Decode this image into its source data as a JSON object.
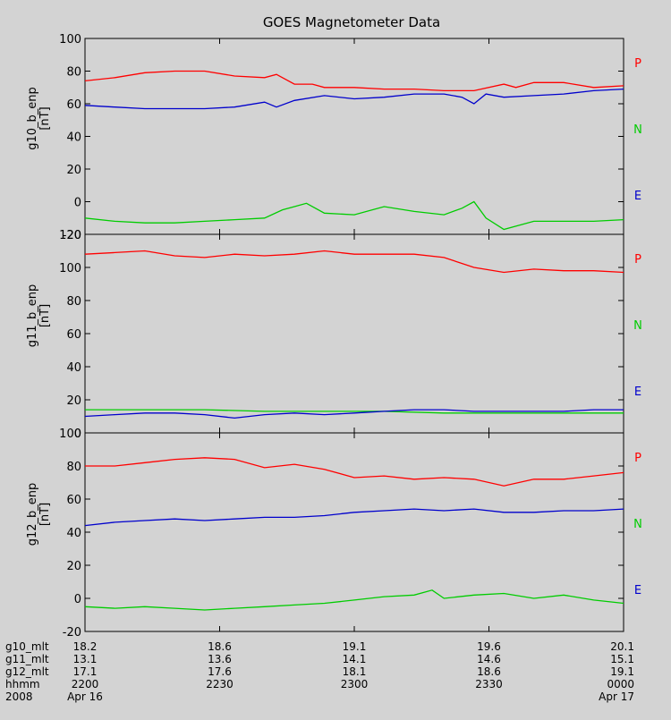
{
  "title": "GOES Magnetometer Data",
  "chart_data": [
    {
      "type": "line",
      "ylabel": "g10_b_enp",
      "yunit": "[nT]",
      "ylim": [
        -20,
        100
      ],
      "yticks": [
        "100",
        "80",
        "60",
        "40",
        "20",
        "0",
        "-20"
      ],
      "series": [
        {
          "name": "P",
          "color": "#ff0000",
          "x": [
            0,
            5,
            10,
            15,
            20,
            25,
            30,
            32,
            35,
            38,
            40,
            45,
            50,
            55,
            60,
            65,
            70,
            72,
            75,
            80,
            85,
            90
          ],
          "y": [
            74,
            76,
            79,
            80,
            80,
            77,
            76,
            78,
            72,
            72,
            70,
            70,
            69,
            69,
            68,
            68,
            72,
            70,
            73,
            73,
            70,
            71
          ]
        },
        {
          "name": "N",
          "color": "#00cc00",
          "x": [
            0,
            5,
            10,
            15,
            20,
            25,
            30,
            33,
            35,
            37,
            40,
            45,
            50,
            55,
            60,
            63,
            65,
            67,
            70,
            75,
            80,
            85,
            90
          ],
          "y": [
            -10,
            -12,
            -13,
            -13,
            -12,
            -11,
            -10,
            -5,
            -3,
            -1,
            -7,
            -8,
            -3,
            -6,
            -8,
            -4,
            0,
            -10,
            -17,
            -12,
            -12,
            -12,
            -11
          ]
        },
        {
          "name": "E",
          "color": "#0000cc",
          "x": [
            0,
            5,
            10,
            15,
            20,
            25,
            30,
            32,
            35,
            40,
            45,
            50,
            55,
            60,
            63,
            65,
            67,
            70,
            75,
            80,
            85,
            90
          ],
          "y": [
            59,
            58,
            57,
            57,
            57,
            58,
            61,
            58,
            62,
            65,
            63,
            64,
            66,
            66,
            64,
            60,
            66,
            64,
            65,
            66,
            68,
            69
          ]
        }
      ]
    },
    {
      "type": "line",
      "ylabel": "g11_b_enp",
      "yunit": "[nT]",
      "ylim": [
        0,
        120
      ],
      "yticks": [
        "120",
        "100",
        "80",
        "60",
        "40",
        "20",
        "0"
      ],
      "series": [
        {
          "name": "P",
          "color": "#ff0000",
          "x": [
            0,
            5,
            10,
            15,
            20,
            25,
            30,
            35,
            40,
            45,
            50,
            55,
            60,
            65,
            70,
            75,
            80,
            85,
            90
          ],
          "y": [
            108,
            109,
            110,
            107,
            106,
            108,
            107,
            108,
            110,
            108,
            108,
            108,
            106,
            100,
            97,
            99,
            98,
            98,
            97
          ]
        },
        {
          "name": "N",
          "color": "#00cc00",
          "x": [
            0,
            10,
            20,
            30,
            40,
            50,
            60,
            70,
            80,
            90
          ],
          "y": [
            14,
            14,
            14,
            13,
            13,
            13,
            12,
            12,
            12,
            12
          ]
        },
        {
          "name": "E",
          "color": "#0000cc",
          "x": [
            0,
            5,
            10,
            15,
            20,
            25,
            30,
            35,
            40,
            45,
            50,
            55,
            60,
            65,
            70,
            75,
            80,
            85,
            90
          ],
          "y": [
            10,
            11,
            12,
            12,
            11,
            9,
            11,
            12,
            11,
            12,
            13,
            14,
            14,
            13,
            13,
            13,
            13,
            14,
            14
          ]
        }
      ]
    },
    {
      "type": "line",
      "ylabel": "g12_b_enp",
      "yunit": "[nT]",
      "ylim": [
        -20,
        100
      ],
      "yticks": [
        "100",
        "80",
        "60",
        "40",
        "20",
        "0",
        "-20"
      ],
      "series": [
        {
          "name": "P",
          "color": "#ff0000",
          "x": [
            0,
            5,
            10,
            15,
            20,
            25,
            30,
            35,
            40,
            45,
            50,
            55,
            60,
            65,
            70,
            75,
            80,
            85,
            90
          ],
          "y": [
            80,
            80,
            82,
            84,
            85,
            84,
            79,
            81,
            78,
            73,
            74,
            72,
            73,
            72,
            68,
            72,
            72,
            74,
            76
          ]
        },
        {
          "name": "N",
          "color": "#00cc00",
          "x": [
            0,
            5,
            10,
            15,
            20,
            25,
            30,
            35,
            40,
            45,
            50,
            55,
            58,
            60,
            65,
            70,
            75,
            80,
            85,
            90
          ],
          "y": [
            -5,
            -6,
            -5,
            -6,
            -7,
            -6,
            -5,
            -4,
            -3,
            -1,
            1,
            2,
            5,
            0,
            2,
            3,
            0,
            2,
            -1,
            -3
          ]
        },
        {
          "name": "E",
          "color": "#0000cc",
          "x": [
            0,
            5,
            10,
            15,
            20,
            25,
            30,
            35,
            40,
            45,
            50,
            55,
            60,
            65,
            70,
            75,
            80,
            85,
            90
          ],
          "y": [
            44,
            46,
            47,
            48,
            47,
            48,
            49,
            49,
            50,
            52,
            53,
            54,
            53,
            54,
            52,
            52,
            53,
            53,
            54
          ]
        }
      ]
    }
  ],
  "xaxis": {
    "xlim": [
      0,
      90
    ],
    "ticks": [
      0,
      22.5,
      45,
      67.5,
      90
    ],
    "rows": [
      {
        "label": "g10_mlt",
        "values": [
          "18.2",
          "18.6",
          "19.1",
          "19.6",
          "20.1"
        ]
      },
      {
        "label": "g11_mlt",
        "values": [
          "13.1",
          "13.6",
          "14.1",
          "14.6",
          "15.1"
        ]
      },
      {
        "label": "g12_mlt",
        "values": [
          "17.1",
          "17.6",
          "18.1",
          "18.6",
          "19.1"
        ]
      },
      {
        "label": "hhmm",
        "values": [
          "2200",
          "2230",
          "2300",
          "2330",
          "0000"
        ]
      },
      {
        "label": "2008",
        "values": [
          "Apr 16",
          "",
          "",
          "",
          "Apr 17"
        ]
      }
    ]
  }
}
